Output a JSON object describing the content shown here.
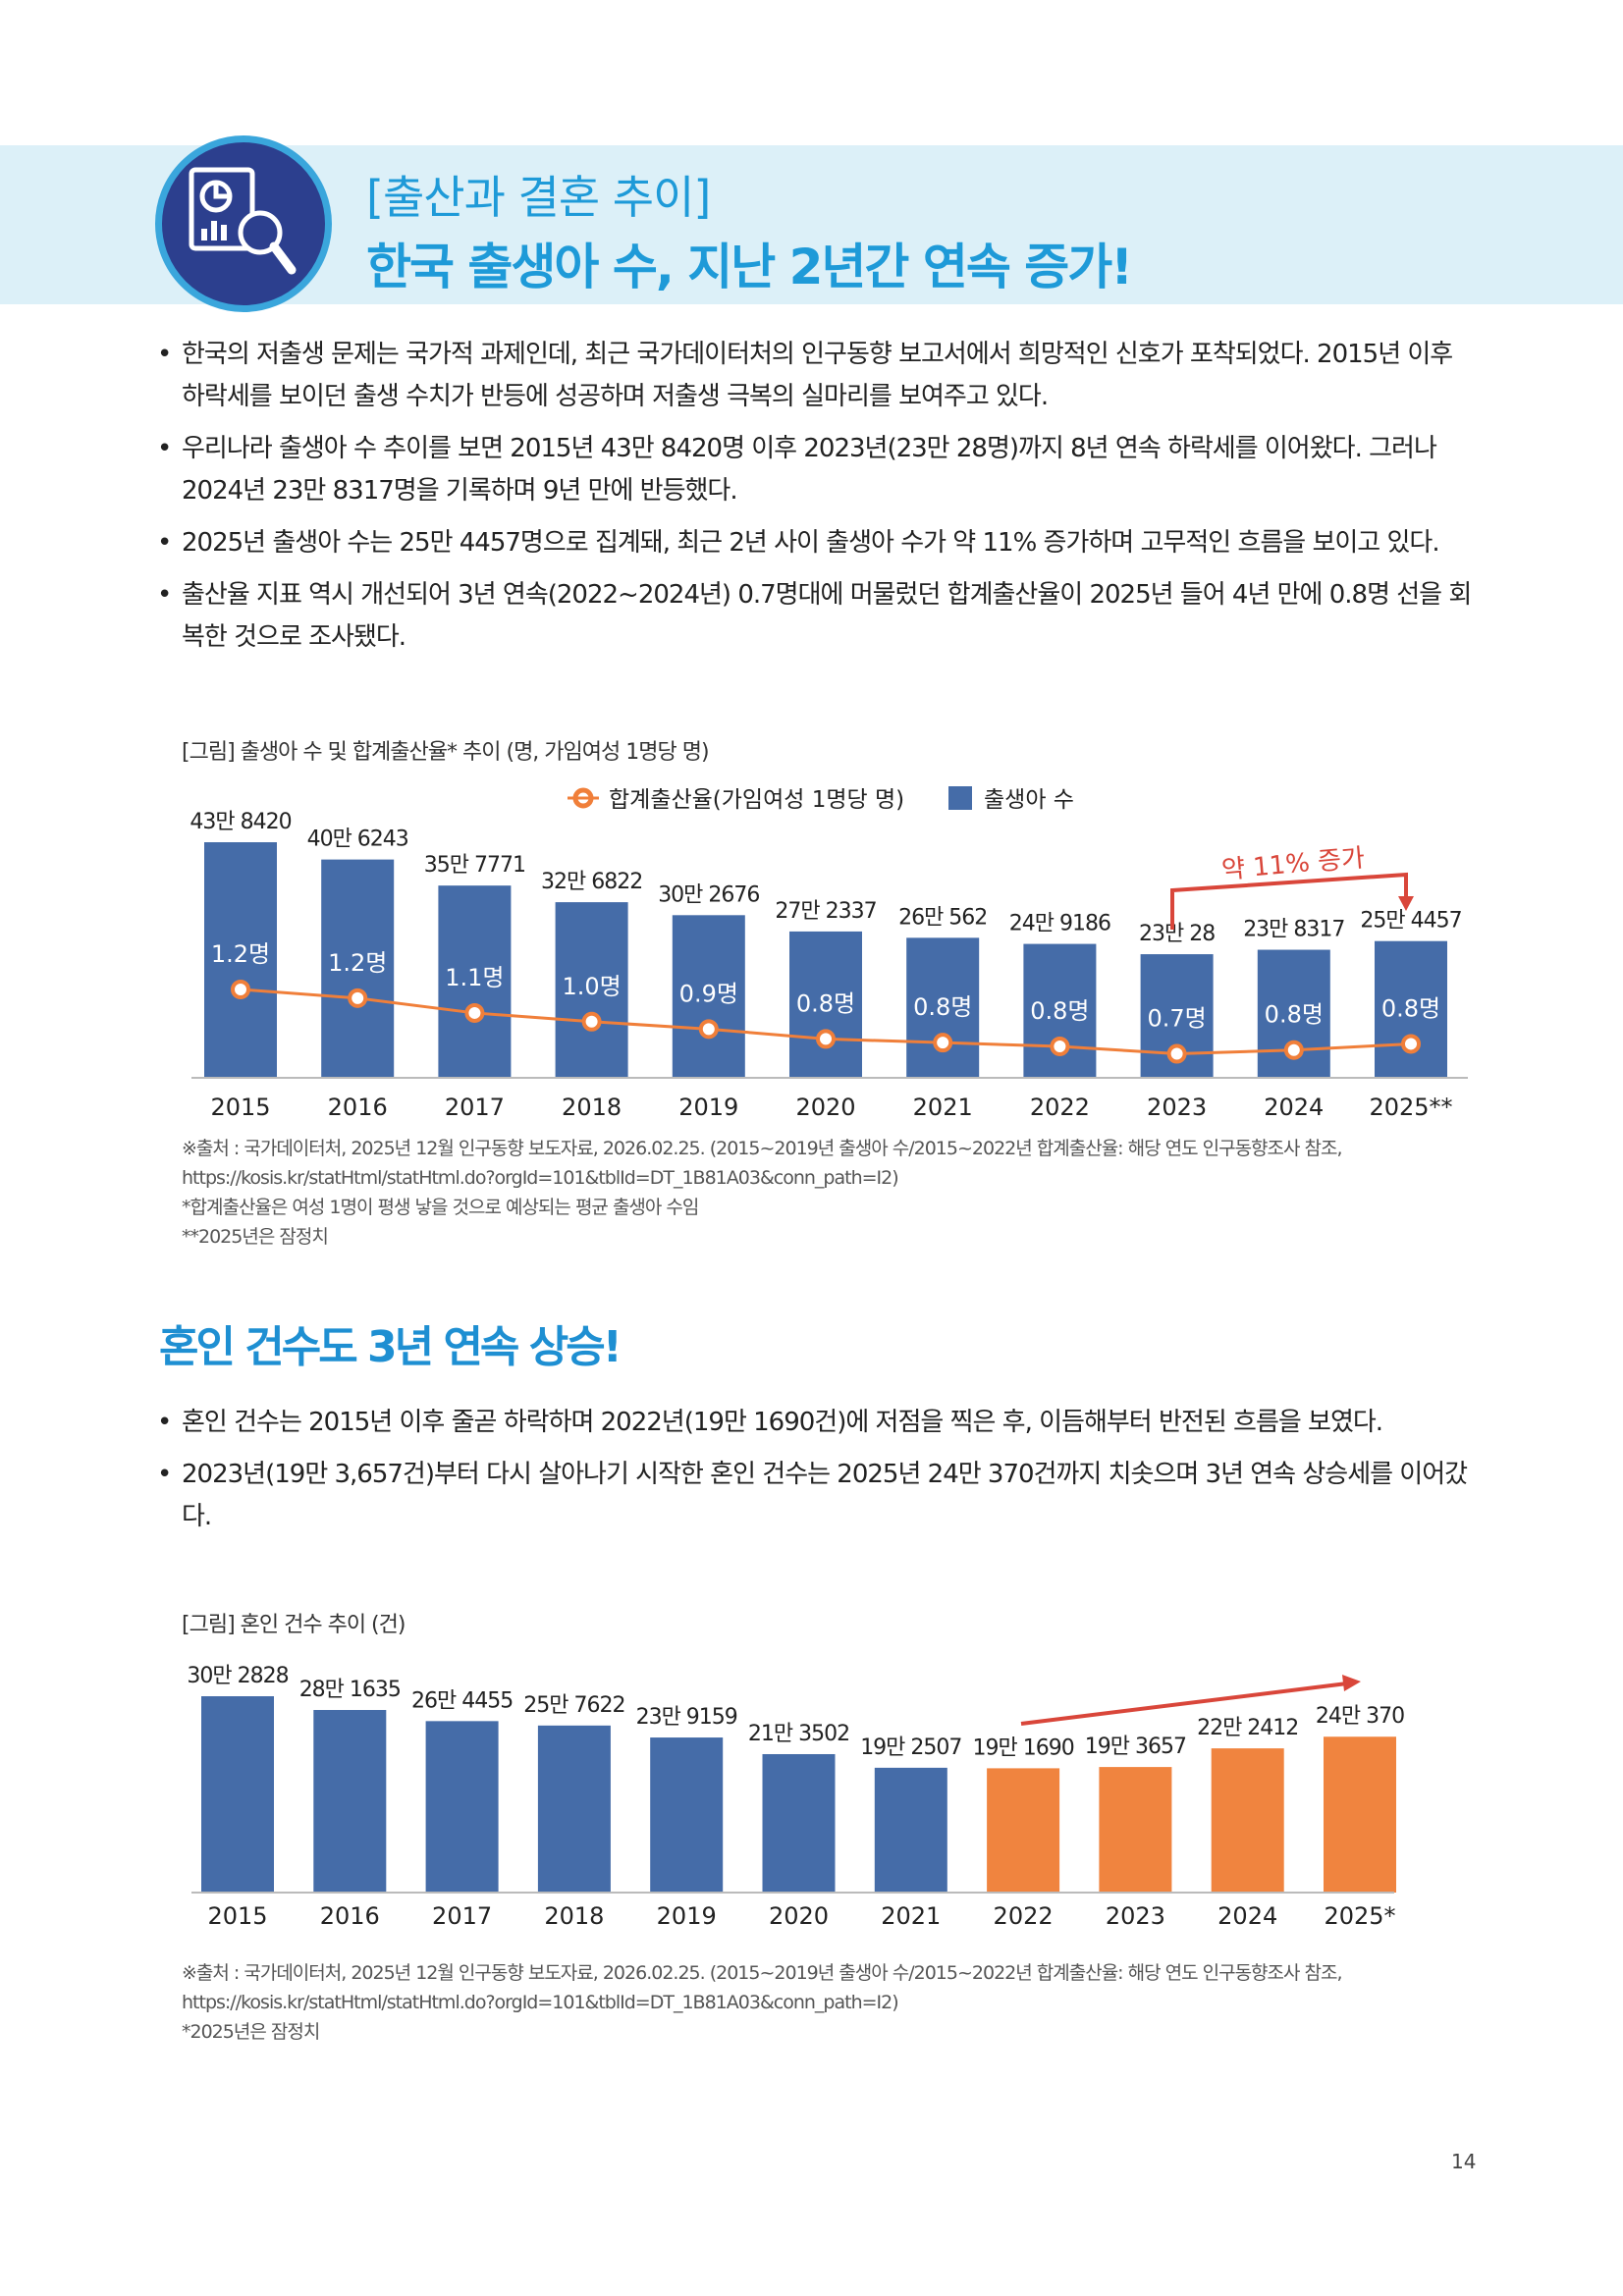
{
  "header": {
    "badge_icon": "chart-magnifier-icon",
    "subtitle": "[출산과 결혼 추이]",
    "title": "한국 출생아 수, 지난 2년간 연속 증가!"
  },
  "section1": {
    "bullets": [
      "한국의 저출생 문제는 국가적 과제인데, 최근 국가데이터처의 인구동향 보고서에서 희망적인 신호가 포착되었다. 2015년 이후 하락세를 보이던 출생 수치가 반등에 성공하며 저출생 극복의 실마리를 보여주고 있다.",
      "우리나라 출생아 수 추이를 보면 2015년 43만 8420명 이후 2023년(23만 28명)까지 8년 연속 하락세를 이어왔다. 그러나 2024년 23만 8317명을 기록하며 9년 만에 반등했다.",
      "2025년 출생아 수는 25만 4457명으로 집계돼, 최근 2년 사이 출생아 수가 약 11% 증가하며 고무적인 흐름을 보이고 있다.",
      "출산율 지표 역시 개선되어 3년 연속(2022~2024년) 0.7명대에 머물렀던 합계출산율이 2025년 들어 4년 만에 0.8명 선을 회복한 것으로 조사됐다."
    ],
    "notes": [
      "※출처 : 국가데이터처, 2025년 12월 인구동향 보도자료, 2026.02.25. (2015~2019년 출생아 수/2015~2022년 합계출산율: 해당 연도 인구동향조사 참조,",
      "https://kosis.kr/statHtml/statHtml.do?orgId=101&tblId=DT_1B81A03&conn_path=I2)",
      "*합계출산율은 여성 1명이 평생 낳을 것으로 예상되는 평균 출생아 수임",
      "**2025년은 잠정치"
    ]
  },
  "section2": {
    "heading": "혼인 건수도 3년 연속 상승!",
    "bullets": [
      "혼인 건수는 2015년 이후 줄곧 하락하며 2022년(19만 1690건)에 저점을 찍은 후, 이듬해부터 반전된 흐름을 보였다.",
      "2023년(19만 3,657건)부터 다시 살아나기 시작한 혼인 건수는 2025년 24만 370건까지 치솟으며 3년 연속 상승세를 이어갔다."
    ],
    "notes": [
      "※출처 : 국가데이터처, 2025년 12월 인구동향 보도자료, 2026.02.25. (2015~2019년 출생아 수/2015~2022년 합계출산율: 해당 연도 인구동향조사 참조,",
      "https://kosis.kr/statHtml/statHtml.do?orgId=101&tblId=DT_1B81A03&conn_path=I2)",
      "*2025년은 잠정치"
    ]
  },
  "page_number": "14",
  "chart_data": [
    {
      "type": "bar",
      "title": "[그림] 출생아 수 및 합계출산율* 추이 (명, 가임여성 1명당 명)",
      "categories": [
        "2015",
        "2016",
        "2017",
        "2018",
        "2019",
        "2020",
        "2021",
        "2022",
        "2023",
        "2024",
        "2025**"
      ],
      "legend_position": "top",
      "series": [
        {
          "name": "출생아 수",
          "type": "bar",
          "color": "#456ca8",
          "values": [
            438420,
            406243,
            357771,
            326822,
            302676,
            272337,
            260562,
            249186,
            230028,
            238317,
            254457
          ],
          "labels": [
            "43만 8420",
            "40만 6243",
            "35만 7771",
            "32만 6822",
            "30만 2676",
            "27만 2337",
            "26만 562",
            "24만 9186",
            "23만  28",
            "23만 8317",
            "25만 4457"
          ]
        },
        {
          "name": "합계출산율(가임여성 1명당 명)",
          "type": "line",
          "color": "#f07f3a",
          "values": [
            1.24,
            1.17,
            1.05,
            0.98,
            0.92,
            0.84,
            0.81,
            0.78,
            0.72,
            0.75,
            0.8
          ],
          "labels": [
            "1.2명",
            "1.2명",
            "1.1명",
            "1.0명",
            "0.9명",
            "0.8명",
            "0.8명",
            "0.8명",
            "0.7명",
            "0.8명",
            "0.8명"
          ]
        }
      ],
      "annotation": {
        "text": "약 11% 증가",
        "color": "#d9463a",
        "from": "2023",
        "to": "2025**"
      }
    },
    {
      "type": "bar",
      "title": "[그림] 혼인 건수 추이 (건)",
      "categories": [
        "2015",
        "2016",
        "2017",
        "2018",
        "2019",
        "2020",
        "2021",
        "2022",
        "2023",
        "2024",
        "2025*"
      ],
      "values": [
        302828,
        281635,
        264455,
        257622,
        239159,
        213502,
        192507,
        191690,
        193657,
        222412,
        240370
      ],
      "labels": [
        "30만 2828",
        "28만 1635",
        "26만 4455",
        "25만 7622",
        "23만 9159",
        "21만 3502",
        "19만 2507",
        "19만 1690",
        "19만 3657",
        "22만 2412",
        "24만  370"
      ],
      "colors": {
        "decline": "#456ca8",
        "rise": "#f0843f"
      },
      "highlight_from": "2022",
      "annotation": {
        "type": "arrow",
        "color": "#d9463a",
        "from": "2022",
        "to": "2025*"
      }
    }
  ]
}
